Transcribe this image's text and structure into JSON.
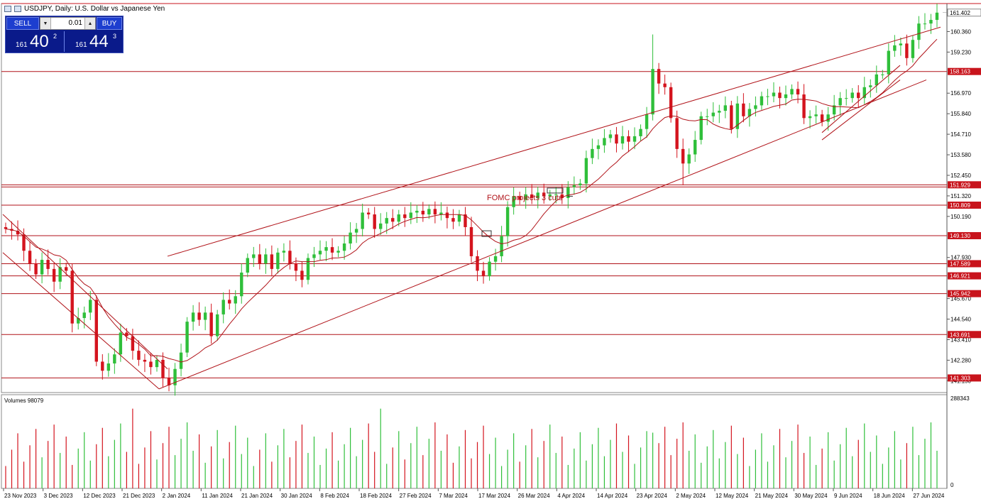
{
  "title": "USDJPY, Daily:  U.S. Dollar vs Japanese Yen",
  "trade_panel": {
    "sell_label": "SELL",
    "buy_label": "BUY",
    "lot": "0.01",
    "sell_price": {
      "big": "161",
      "main": "40",
      "sup": "2"
    },
    "buy_price": {
      "big": "161",
      "main": "44",
      "sup": "3"
    }
  },
  "price_axis": {
    "ticks": [
      "160.360",
      "159.230",
      "156.970",
      "155.840",
      "154.710",
      "153.580",
      "152.450",
      "151.320",
      "150.190",
      "147.930",
      "145.670",
      "144.540",
      "143.410",
      "142.280",
      "141.150"
    ],
    "current_price": "161.402",
    "level_labels": [
      "158.163",
      "151.929",
      "150.809",
      "149.130",
      "147.589",
      "146.921",
      "145.942",
      "143.691",
      "141.303"
    ]
  },
  "annotation": "FOMC projects 3 cuts",
  "volumes": {
    "label": "Volumes 98079",
    "max_label": "288343",
    "zero_label": "0"
  },
  "time_axis": [
    "23 Nov 2023",
    "3 Dec 2023",
    "12 Dec 2023",
    "21 Dec 2023",
    "2 Jan 2024",
    "11 Jan 2024",
    "21 Jan 2024",
    "30 Jan 2024",
    "8 Feb 2024",
    "18 Feb 2024",
    "27 Feb 2024",
    "7 Mar 2024",
    "17 Mar 2024",
    "26 Mar 2024",
    "4 Apr 2024",
    "14 Apr 2024",
    "23 Apr 2024",
    "2 May 2024",
    "12 May 2024",
    "21 May 2024",
    "30 May 2024",
    "9 Jun 2024",
    "18 Jun 2024",
    "27 Jun 2024"
  ],
  "colors": {
    "up": "#2fbf3a",
    "down": "#d4141e",
    "line": "#b01218",
    "label_bg": "#c8141c"
  },
  "chart_data": {
    "type": "candlestick",
    "symbol": "USDJPY",
    "timeframe": "Daily",
    "ylim": [
      140.5,
      161.9
    ],
    "horizontal_levels": [
      158.163,
      151.929,
      150.809,
      149.13,
      147.589,
      146.921,
      145.942,
      143.691,
      141.303
    ],
    "closes_approx": [
      149.5,
      149.4,
      149.2,
      148.3,
      147.6,
      147.0,
      147.8,
      147.3,
      146.6,
      147.4,
      147.2,
      144.3,
      144.6,
      144.9,
      145.6,
      142.2,
      141.7,
      142.1,
      142.6,
      143.8,
      143.6,
      142.8,
      142.3,
      142.2,
      141.9,
      142.3,
      141.3,
      140.9,
      141.8,
      142.7,
      144.4,
      144.9,
      144.5,
      144.9,
      143.6,
      144.8,
      145.6,
      145.4,
      145.8,
      147.1,
      147.9,
      148.1,
      147.6,
      148.1,
      147.3,
      148.2,
      148.3,
      147.6,
      147.2,
      146.7,
      147.9,
      148.1,
      148.3,
      148.5,
      148.2,
      148.3,
      148.7,
      149.3,
      149.5,
      150.4,
      150.3,
      149.5,
      149.8,
      150.1,
      149.9,
      150.3,
      150.1,
      150.4,
      150.5,
      150.3,
      150.6,
      150.3,
      150.4,
      150.1,
      149.9,
      150.3,
      149.6,
      148.0,
      147.2,
      146.9,
      147.7,
      148.0,
      149.1,
      150.7,
      151.3,
      151.1,
      151.4,
      151.2,
      151.5,
      151.3,
      151.4,
      151.4,
      151.2,
      151.8,
      151.9,
      152.0,
      153.4,
      153.9,
      154.1,
      154.5,
      154.7,
      154.2,
      154.6,
      154.3,
      154.6,
      155.0,
      155.8,
      158.3,
      157.5,
      157.3,
      155.6,
      153.9,
      153.1,
      153.6,
      154.4,
      155.7,
      155.7,
      155.9,
      156.0,
      156.3,
      155.0,
      156.4,
      155.7,
      156.1,
      156.3,
      156.8,
      156.8,
      157.0,
      156.7,
      156.9,
      157.2,
      156.9,
      155.6,
      155.7,
      155.8,
      155.4,
      155.8,
      156.3,
      156.7,
      156.7,
      157.0,
      156.7,
      157.3,
      157.4,
      158.0,
      158.0,
      159.3,
      159.6,
      159.7,
      158.9,
      159.9,
      160.8,
      160.8,
      161.0,
      161.4
    ],
    "volume_scale_max": 288343
  }
}
